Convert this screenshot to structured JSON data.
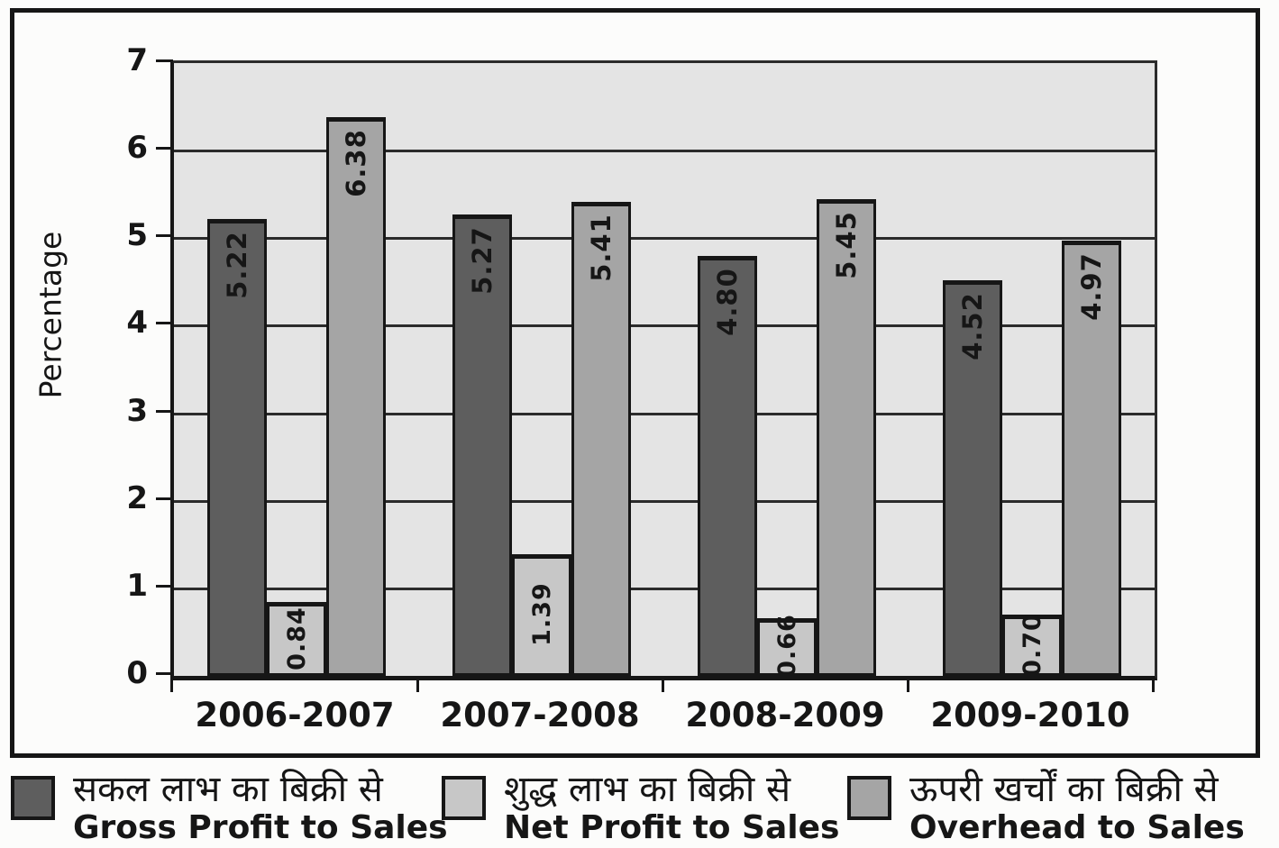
{
  "chart_data": {
    "type": "bar",
    "title": "",
    "ylabel": "Percentage",
    "xlabel": "",
    "ylim": [
      0,
      7
    ],
    "yticks": [
      0,
      1,
      2,
      3,
      4,
      5,
      6,
      7
    ],
    "grid": true,
    "legend_position": "bottom",
    "categories": [
      "2006-2007",
      "2007-2008",
      "2008-2009",
      "2009-2010"
    ],
    "series": [
      {
        "name_hindi": "सकल लाभ का बिक्री से",
        "name_english": "Gross Profit to Sales",
        "color": "#5e5e5e",
        "values": [
          5.22,
          5.27,
          4.8,
          4.52
        ],
        "labels": [
          "5.22",
          "5.27",
          "4.80",
          "4.52"
        ]
      },
      {
        "name_hindi": "शुद्ध लाभ का बिक्री से",
        "name_english": "Net Profit to Sales",
        "color": "#c7c7c7",
        "values": [
          0.84,
          1.39,
          0.66,
          0.7
        ],
        "labels": [
          "0.84",
          "1.39",
          "0.66",
          "0.70"
        ]
      },
      {
        "name_hindi": "ऊपरी खर्चों का बिक्री से",
        "name_english": "Overhead to Sales",
        "color": "#a5a5a5",
        "values": [
          6.38,
          5.41,
          5.45,
          4.97
        ],
        "labels": [
          "6.38",
          "5.41",
          "5.45",
          "4.97"
        ]
      }
    ],
    "colors": {
      "plot_background": "#e4e4e4",
      "gridline": "#2b2b2b",
      "axis": "#161616",
      "label_text": "#161616"
    }
  }
}
